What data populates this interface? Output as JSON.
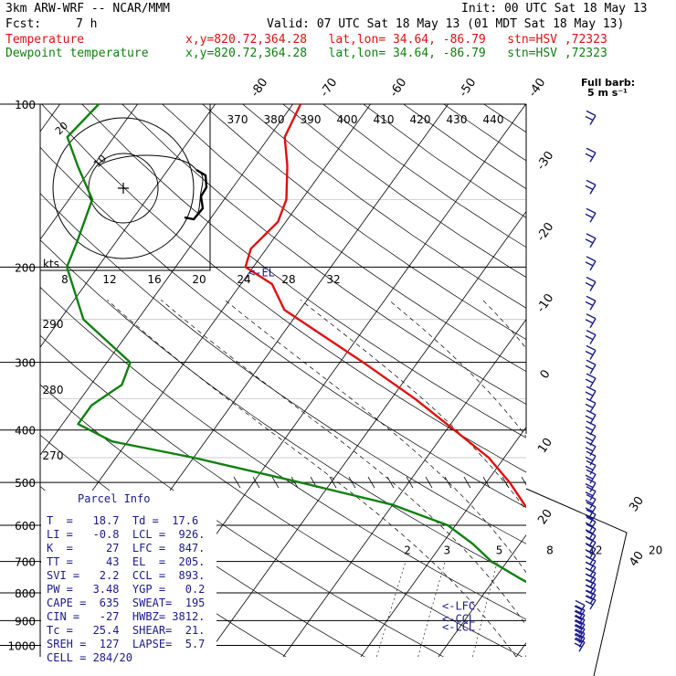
{
  "header": {
    "model": "3km ARW-WRF -- NCAR/MMM",
    "init": "Init: 00 UTC Sat 18 May 13",
    "fcst_label": "Fcst:",
    "fcst_value": "7 h",
    "valid": "Valid: 07 UTC Sat 18 May 13 (01 MDT Sat 18 May 13)",
    "temp_label": "Temperature",
    "temp_loc": "x,y=820.72,364.28   lat,lon= 34.64, -86.79   stn=HSV ,72323",
    "dew_label": "Dewpoint temperature",
    "dew_loc": "x,y=820.72,364.28   lat,lon= 34.64, -86.79   stn=HSV ,72323",
    "temp_color": "#e01010",
    "dew_color": "#108010"
  },
  "chart_data": {
    "type": "line",
    "pressure_levels": [
      100,
      200,
      300,
      400,
      500,
      600,
      700,
      800,
      900,
      1000
    ],
    "isotherm_labels": [
      -80,
      -70,
      -60,
      -50,
      -40,
      -30,
      -20,
      -10,
      0,
      10,
      20,
      30,
      40
    ],
    "theta_labels": [
      370,
      380,
      390,
      400,
      410,
      420,
      430,
      440
    ],
    "lower_theta_labels": [
      290,
      280,
      270
    ],
    "mixing_ratio_labels": [
      2,
      3,
      5,
      8,
      12,
      20
    ],
    "hodograph_ring_labels": [
      "20",
      "10"
    ],
    "hodo_speed_axis_label": "kts",
    "hodo_speed_ticks": [
      8,
      12,
      16,
      20,
      24,
      28,
      32
    ],
    "wind_legend": {
      "title": "Full barb:",
      "value": "5 m s⁻¹"
    },
    "level_markers": [
      {
        "label": "<-EL",
        "p": 205
      },
      {
        "label": "<-LFC",
        "p": 847
      },
      {
        "label": "<-CCL",
        "p": 893
      },
      {
        "label": "<-LCL",
        "p": 926
      }
    ],
    "series": [
      {
        "name": "Temperature",
        "color": "#e01010",
        "points": [
          [
            100,
            -69
          ],
          [
            115,
            -68
          ],
          [
            130,
            -65
          ],
          [
            150,
            -62
          ],
          [
            165,
            -61
          ],
          [
            185,
            -62
          ],
          [
            200,
            -61
          ],
          [
            215,
            -56
          ],
          [
            240,
            -52
          ],
          [
            300,
            -37
          ],
          [
            350,
            -27
          ],
          [
            400,
            -19
          ],
          [
            450,
            -12
          ],
          [
            500,
            -7
          ],
          [
            550,
            -3
          ],
          [
            600,
            1
          ],
          [
            650,
            4
          ],
          [
            700,
            7
          ],
          [
            750,
            9
          ],
          [
            800,
            11
          ],
          [
            850,
            13
          ],
          [
            900,
            16
          ],
          [
            930,
            18
          ],
          [
            960,
            19
          ],
          [
            980,
            20
          ],
          [
            1000,
            19
          ]
        ]
      },
      {
        "name": "Dewpoint temperature",
        "color": "#108010",
        "points": [
          [
            100,
            -95
          ],
          [
            115,
            -96
          ],
          [
            130,
            -92
          ],
          [
            150,
            -87
          ],
          [
            180,
            -85
          ],
          [
            200,
            -84
          ],
          [
            250,
            -77
          ],
          [
            300,
            -67
          ],
          [
            330,
            -66
          ],
          [
            360,
            -68
          ],
          [
            390,
            -68
          ],
          [
            420,
            -62
          ],
          [
            450,
            -50
          ],
          [
            500,
            -34
          ],
          [
            550,
            -20
          ],
          [
            600,
            -11
          ],
          [
            650,
            -6
          ],
          [
            700,
            -2
          ],
          [
            750,
            3
          ],
          [
            800,
            8
          ],
          [
            850,
            9
          ],
          [
            900,
            11
          ],
          [
            950,
            15
          ],
          [
            1000,
            13
          ]
        ]
      }
    ]
  },
  "parcel": {
    "title": "Parcel Info",
    "rows": [
      "T  =   18.7  Td =  17.6",
      "LI =   -0.8  LCL =  926.",
      "K  =     27  LFC =  847.",
      "TT =     43  EL  =  205.",
      "SVI =   2.2  CCL =  893.",
      "PW =   3.48  YGP =   0.2",
      "CAPE =  635  SWEAT=  195",
      "CIN =   -27  HWBZ= 3812.",
      "Tc =   25.4  SHEAR=  21.",
      "SREH =  127  LAPSE=  5.7",
      "CELL = 284/20"
    ]
  }
}
